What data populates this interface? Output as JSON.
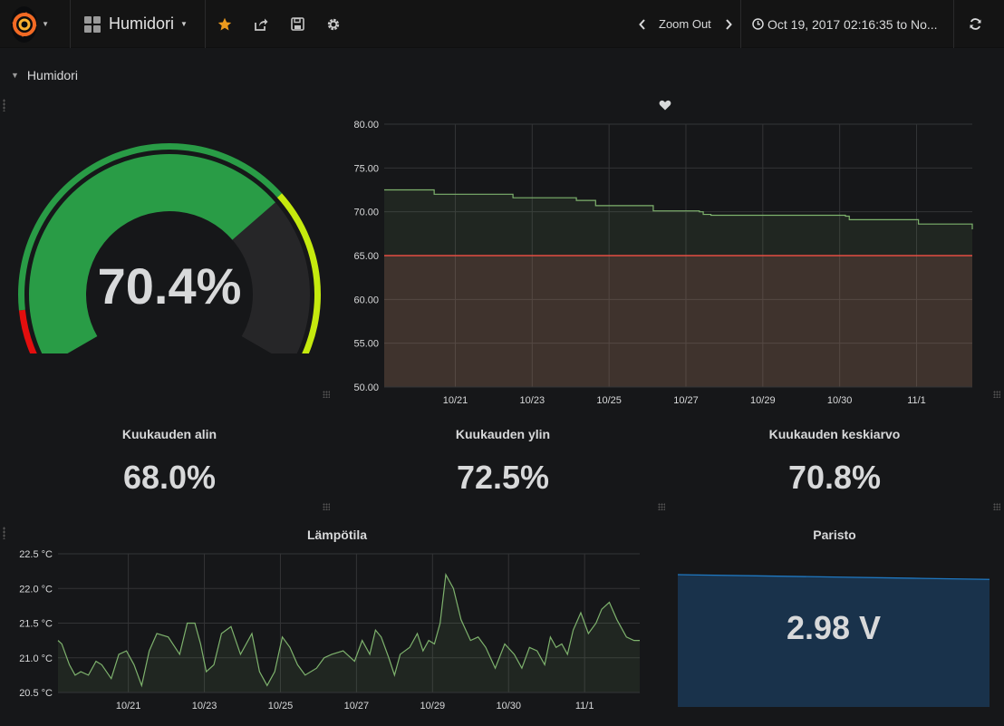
{
  "navbar": {
    "dashboard_title": "Humidori",
    "zoom_out_label": "Zoom Out",
    "time_range": "Oct 19, 2017 02:16:35 to No..."
  },
  "row": {
    "title": "Humidori"
  },
  "gauge": {
    "value_text": "70.4%",
    "value": 70.4,
    "min": 0,
    "max": 100,
    "thresholds": [
      {
        "from": 0,
        "to": 10,
        "color": "#e30e0e"
      },
      {
        "from": 10,
        "to": 70,
        "color": "#299c46"
      },
      {
        "from": 70,
        "to": 100,
        "color": "#c5ea0e"
      }
    ]
  },
  "humidity_graph": {
    "title_icon": "heart-icon",
    "threshold": 65,
    "threshold_color": "#e24d42",
    "series_color": "#7eb26d"
  },
  "stats": [
    {
      "title": "Kuukauden alin",
      "value": "68.0%"
    },
    {
      "title": "Kuukauden ylin",
      "value": "72.5%"
    },
    {
      "title": "Kuukauden keskiarvo",
      "value": "70.8%"
    }
  ],
  "temperature_graph": {
    "title": "Lämpötila",
    "series_color": "#7eb26d"
  },
  "battery": {
    "title": "Paristo",
    "value": "2.98 V",
    "sparkline_color": "#1f78c1",
    "fill_color": "#19324b"
  },
  "chart_data": [
    {
      "type": "area",
      "title": "",
      "ylim": [
        50,
        80
      ],
      "y_ticks": [
        "80.00",
        "75.00",
        "70.00",
        "65.00",
        "60.00",
        "55.00",
        "50.00"
      ],
      "x_ticks": [
        "10/21",
        "10/23",
        "10/25",
        "10/27",
        "10/29",
        "10/30",
        "11/1"
      ],
      "x_range": [
        0,
        15.3
      ],
      "tick_positions": [
        1.85,
        3.85,
        5.85,
        7.85,
        9.85,
        11.85,
        13.85
      ],
      "threshold": 65,
      "series": [
        {
          "x": [
            0,
            1.2,
            1.3,
            1.4,
            3.3,
            3.35,
            3.5,
            5.0,
            5.5,
            6.7,
            7.0,
            8.2,
            8.3,
            8.5,
            10.0,
            12.0,
            12.1,
            13.8,
            13.9,
            15.2,
            15.3
          ],
          "values": [
            72.5,
            72.5,
            72.0,
            72.0,
            72.0,
            71.6,
            71.6,
            71.3,
            70.7,
            70.7,
            70.1,
            70.0,
            69.7,
            69.6,
            69.6,
            69.5,
            69.1,
            69.1,
            68.6,
            68.6,
            68.0
          ]
        }
      ]
    },
    {
      "type": "line",
      "title": "Lämpötila",
      "ylim": [
        20.5,
        22.5
      ],
      "y_ticks": [
        "22.5 °C",
        "22.0 °C",
        "21.5 °C",
        "21.0 °C",
        "20.5 °C"
      ],
      "x_ticks": [
        "10/21",
        "10/23",
        "10/25",
        "10/27",
        "10/29",
        "10/30",
        "11/1"
      ],
      "x_range": [
        0,
        15.3
      ],
      "tick_positions": [
        1.85,
        3.85,
        5.85,
        7.85,
        9.85,
        11.85,
        13.85
      ],
      "series": [
        {
          "x": [
            0,
            0.1,
            0.3,
            0.45,
            0.6,
            0.8,
            1.0,
            1.15,
            1.4,
            1.6,
            1.8,
            2.0,
            2.2,
            2.4,
            2.6,
            2.9,
            3.2,
            3.4,
            3.6,
            3.75,
            3.9,
            4.1,
            4.3,
            4.55,
            4.8,
            5.1,
            5.3,
            5.5,
            5.7,
            5.9,
            6.1,
            6.3,
            6.5,
            6.8,
            7.0,
            7.2,
            7.5,
            7.8,
            8.0,
            8.2,
            8.35,
            8.5,
            8.7,
            8.85,
            9.0,
            9.25,
            9.45,
            9.6,
            9.75,
            9.9,
            10.05,
            10.2,
            10.4,
            10.6,
            10.85,
            11.05,
            11.25,
            11.5,
            11.75,
            12.0,
            12.2,
            12.4,
            12.6,
            12.8,
            12.95,
            13.1,
            13.25,
            13.4,
            13.55,
            13.75,
            13.95,
            14.15,
            14.3,
            14.5,
            14.7,
            14.95,
            15.15,
            15.3
          ],
          "values": [
            21.25,
            21.2,
            20.9,
            20.75,
            20.8,
            20.75,
            20.95,
            20.9,
            20.7,
            21.05,
            21.1,
            20.9,
            20.6,
            21.1,
            21.35,
            21.3,
            21.05,
            21.5,
            21.5,
            21.2,
            20.8,
            20.9,
            21.35,
            21.45,
            21.05,
            21.35,
            20.8,
            20.6,
            20.8,
            21.3,
            21.15,
            20.9,
            20.75,
            20.85,
            21.0,
            21.05,
            21.1,
            20.95,
            21.25,
            21.05,
            21.4,
            21.3,
            21.0,
            20.75,
            21.05,
            21.15,
            21.35,
            21.1,
            21.25,
            21.2,
            21.5,
            22.2,
            22.0,
            21.55,
            21.25,
            21.3,
            21.15,
            20.85,
            21.2,
            21.05,
            20.85,
            21.15,
            21.1,
            20.9,
            21.3,
            21.15,
            21.2,
            21.05,
            21.4,
            21.65,
            21.35,
            21.5,
            21.7,
            21.8,
            21.55,
            21.3,
            21.25,
            21.25
          ]
        }
      ]
    },
    {
      "type": "area",
      "title": "Paristo",
      "series": [
        {
          "values": [
            3.0,
            2.995,
            2.99,
            2.985,
            2.98
          ]
        }
      ]
    }
  ]
}
